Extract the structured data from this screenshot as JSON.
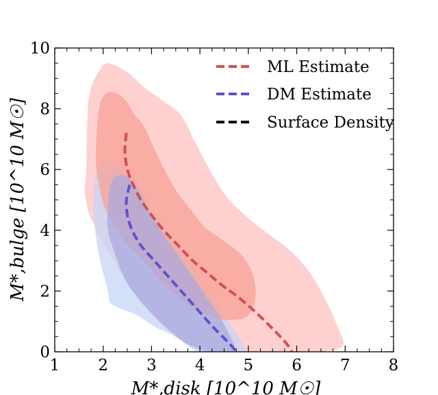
{
  "chart_data": {
    "type": "contour",
    "xlabel": "M*,disk [10^10 M☉]",
    "ylabel": "M*,bulge [10^10 M☉]",
    "xlim": [
      1,
      8
    ],
    "ylim": [
      0,
      10
    ],
    "xticks": [
      1,
      2,
      3,
      4,
      5,
      6,
      7,
      8
    ],
    "yticks": [
      0,
      2,
      4,
      6,
      8,
      10
    ],
    "xtick_labels": [
      "1",
      "2",
      "3",
      "4",
      "5",
      "6",
      "7",
      "8"
    ],
    "ytick_labels": [
      "0",
      "2",
      "4",
      "6",
      "8",
      "10"
    ],
    "legend_position": "top-right",
    "colors": {
      "ml": "#d05050",
      "dm": "#6050d0",
      "sd": "#000000",
      "ml_outer": "#ffd0d0",
      "ml_inner": "#f7a196",
      "dm_outer": "#c5d6f5",
      "dm_inner": "#a8a8e0"
    },
    "series": [
      {
        "name": "ML Estimate",
        "style": "dashed",
        "color": "#d05050",
        "x": [
          2.48,
          2.45,
          2.5,
          2.62,
          2.78,
          3.0,
          3.25,
          3.55,
          3.85,
          4.15,
          4.45,
          4.75,
          5.05,
          5.35,
          5.6,
          5.8,
          5.9
        ],
        "y": [
          7.2,
          6.6,
          6.0,
          5.5,
          5.0,
          4.5,
          4.0,
          3.5,
          3.0,
          2.6,
          2.2,
          1.85,
          1.45,
          1.0,
          0.6,
          0.25,
          0.0
        ]
      },
      {
        "name": "DM Estimate",
        "style": "dashed",
        "color": "#6050d0",
        "x": [
          2.55,
          2.48,
          2.5,
          2.6,
          2.78,
          3.0,
          3.25,
          3.5,
          3.75,
          4.0,
          4.25,
          4.5,
          4.65,
          4.75
        ],
        "y": [
          5.5,
          5.0,
          4.5,
          4.0,
          3.5,
          3.1,
          2.65,
          2.2,
          1.75,
          1.3,
          0.85,
          0.45,
          0.2,
          0.0
        ]
      },
      {
        "name": "Surface Density",
        "style": "dashed",
        "color": "#000000",
        "x": [],
        "y": []
      }
    ],
    "contours": [
      {
        "name": "ML outer region",
        "fill": "#ffd0d0",
        "x": [
          1.65,
          1.7,
          1.9,
          2.1,
          2.5,
          2.85,
          3.2,
          3.6,
          3.9,
          4.2,
          4.55,
          5.0,
          5.4,
          5.85,
          6.25,
          6.6,
          6.85,
          6.95,
          6.5,
          5.5,
          4.5,
          3.7,
          3.2,
          2.9,
          2.55,
          2.3,
          2.1,
          1.9,
          1.7,
          1.62
        ],
        "y": [
          6.0,
          8.3,
          9.2,
          9.5,
          9.2,
          8.7,
          8.3,
          7.8,
          6.9,
          6.0,
          5.1,
          4.4,
          3.9,
          3.35,
          2.65,
          1.7,
          0.8,
          0.2,
          0.0,
          0.0,
          0.0,
          0.3,
          0.9,
          1.5,
          2.1,
          2.8,
          3.3,
          3.9,
          4.6,
          5.3
        ]
      },
      {
        "name": "ML inner region",
        "fill": "#f7a196",
        "x": [
          1.85,
          1.9,
          2.0,
          2.2,
          2.45,
          2.65,
          2.85,
          3.05,
          3.3,
          3.55,
          3.85,
          4.1,
          4.45,
          4.75,
          4.95,
          5.1,
          5.15,
          5.0,
          4.7,
          4.35,
          3.9,
          3.55,
          3.2,
          2.95,
          2.7,
          2.45,
          2.2,
          2.0,
          1.88
        ],
        "y": [
          6.5,
          7.8,
          8.4,
          8.55,
          8.3,
          7.8,
          7.4,
          6.7,
          5.9,
          5.2,
          4.6,
          4.1,
          3.7,
          3.35,
          3.0,
          2.5,
          1.8,
          1.2,
          1.05,
          1.1,
          1.4,
          1.8,
          2.3,
          2.8,
          3.2,
          3.6,
          4.2,
          4.9,
          5.8
        ]
      },
      {
        "name": "DM outer region",
        "fill": "#c5d6f5",
        "x": [
          1.8,
          1.85,
          2.0,
          2.2,
          2.45,
          2.7,
          2.9,
          3.2,
          3.5,
          3.8,
          4.1,
          4.45,
          4.75,
          4.9,
          4.95,
          4.5,
          4.0,
          3.75,
          3.5,
          3.1,
          2.7,
          2.4,
          2.15,
          2.1,
          2.0,
          1.9,
          1.82
        ],
        "y": [
          5.0,
          5.9,
          6.2,
          6.2,
          5.9,
          5.5,
          5.0,
          4.3,
          3.6,
          2.9,
          2.1,
          1.3,
          0.6,
          0.2,
          0.0,
          0.0,
          0.0,
          0.2,
          0.5,
          0.8,
          1.2,
          1.4,
          1.6,
          2.0,
          2.6,
          3.3,
          4.2
        ]
      },
      {
        "name": "DM inner region",
        "fill": "#a8a8e0",
        "x": [
          2.1,
          2.15,
          2.3,
          2.5,
          2.7,
          2.9,
          3.15,
          3.45,
          3.75,
          4.05,
          4.35,
          4.6,
          4.72,
          4.55,
          4.2,
          3.8,
          3.45,
          3.1,
          2.75,
          2.45,
          2.25,
          2.1
        ],
        "y": [
          4.8,
          5.5,
          5.8,
          5.75,
          5.4,
          4.8,
          4.1,
          3.4,
          2.7,
          2.0,
          1.3,
          0.6,
          0.1,
          0.0,
          0.0,
          0.2,
          0.6,
          1.1,
          1.7,
          2.4,
          3.2,
          4.0
        ]
      }
    ]
  },
  "legend": {
    "items": [
      {
        "label": "ML Estimate",
        "color": "#d05050"
      },
      {
        "label": "DM Estimate",
        "color": "#6050d0"
      },
      {
        "label": "Surface Density",
        "color": "#000000"
      }
    ]
  }
}
